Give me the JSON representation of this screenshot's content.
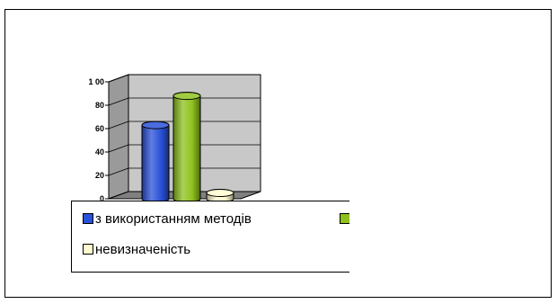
{
  "chart_data": {
    "type": "bar",
    "style": "3d-cylinder",
    "title": "",
    "xlabel": "",
    "ylabel": "",
    "ylim": [
      0,
      100
    ],
    "yticks": [
      "0",
      "20",
      "40",
      "60",
      "80",
      "1 00"
    ],
    "grid": true,
    "legend_position": "bottom-left",
    "series": [
      {
        "name": "з використанням методів",
        "values": [
          63
        ],
        "color": "#2a52d8"
      },
      {
        "name": "",
        "values": [
          88
        ],
        "color": "#8ec21f"
      },
      {
        "name": "невизначеність",
        "values": [
          5
        ],
        "color": "#fffbd0"
      }
    ]
  }
}
